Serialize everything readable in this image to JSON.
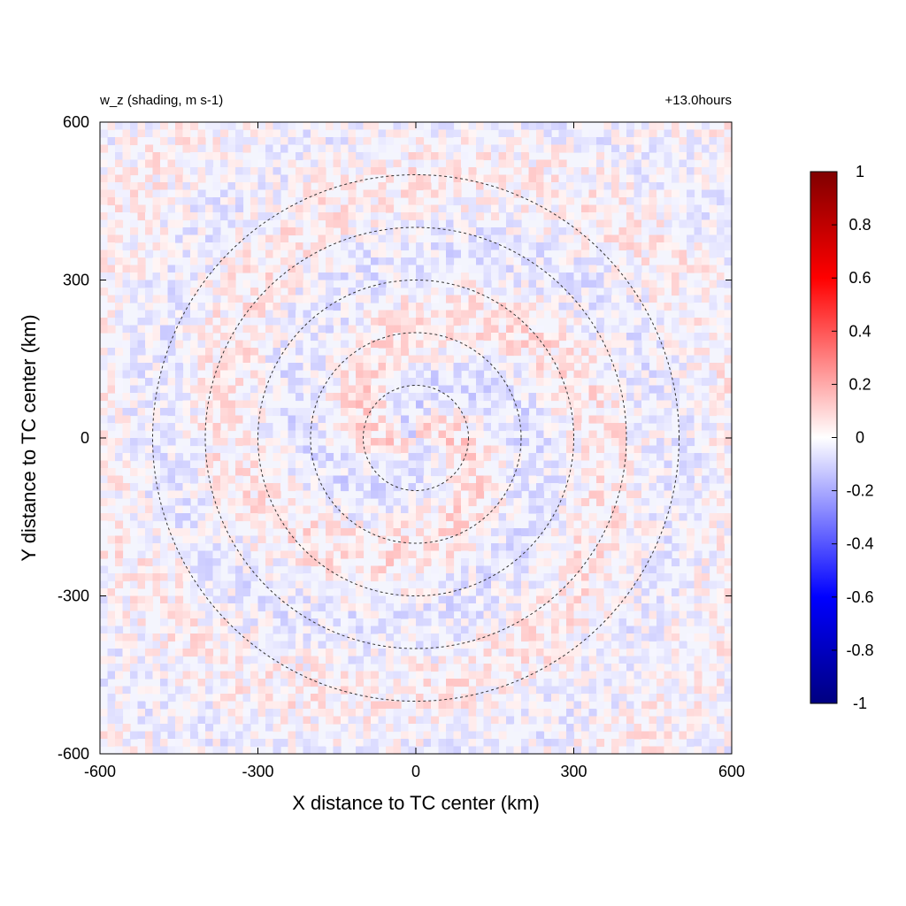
{
  "chart_data": {
    "type": "heatmap",
    "title_left": "w_z (shading, m s-1)",
    "title_right": "+13.0hours",
    "xlabel": "X distance to TC center (km)",
    "ylabel": "Y distance to TC center (km)",
    "xlim": [
      -600,
      600
    ],
    "ylim": [
      -600,
      600
    ],
    "xticks": [
      -600,
      -300,
      0,
      300,
      600
    ],
    "yticks": [
      -600,
      -300,
      0,
      300,
      600
    ],
    "range_circles_km": [
      100,
      200,
      300,
      400,
      500
    ],
    "field_description": "near-zero noisy vertical velocity anomalies (mostly between -0.2 and 0.2 m s-1), light blue and light red speckle with spiral banding around center",
    "colorbar": {
      "min": -1,
      "max": 1,
      "ticks": [
        1,
        0.8,
        0.6,
        0.4,
        0.2,
        0,
        -0.2,
        -0.4,
        -0.6,
        -0.8,
        -1
      ],
      "tick_labels": [
        "1",
        "0.8",
        "0.6",
        "0.4",
        "0.2",
        "0",
        "-0.2",
        "-0.4",
        "-0.6",
        "-0.8",
        "-1"
      ],
      "colors": {
        "max": "#800000",
        "high": "#ff0000",
        "zero": "#ffffff",
        "low": "#0000ff",
        "min": "#000080"
      }
    }
  }
}
